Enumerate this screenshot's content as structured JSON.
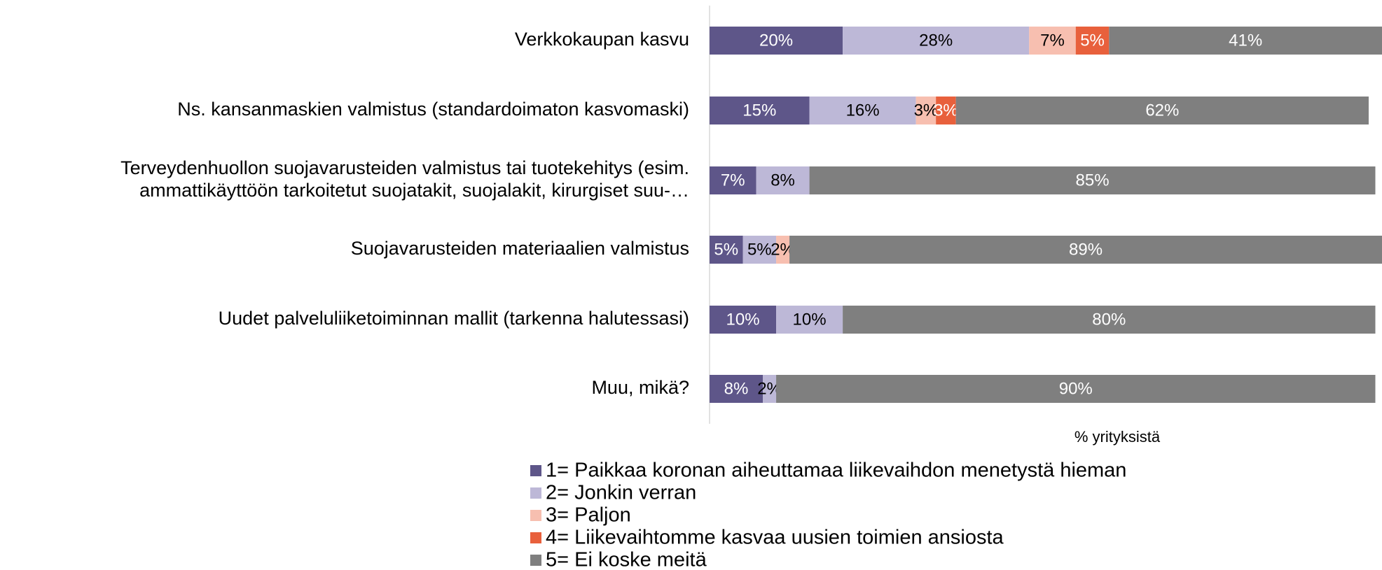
{
  "chart_data": {
    "type": "stacked-barh",
    "categories": [
      "Verkkokaupan kasvu",
      "Ns. kansanmaskien valmistus (standardoimaton kasvomaski)",
      "Terveydenhuollon suojavarusteiden valmistus tai tuotekehitys (esim.\nammattikäyttöön tarkoitetut suojatakit, suojalakit, kirurgiset suu-…",
      "Suojavarusteiden materiaalien valmistus",
      "Uudet palveluliiketoiminnan mallit (tarkenna halutessasi)",
      "Muu, mikä?"
    ],
    "series": [
      {
        "name": "1= Paikkaa koronan aiheuttamaa liikevaihdon menetystä hieman",
        "color": "#5e5689",
        "values": [
          20,
          15,
          7,
          5,
          10,
          8
        ],
        "value_labels": [
          "20%",
          "15%",
          "7%",
          "5%",
          "10%",
          "8%"
        ]
      },
      {
        "name": "2= Jonkin verran",
        "color": "#bdb8d7",
        "values": [
          28,
          16,
          8,
          5,
          10,
          2
        ],
        "value_labels": [
          "28%",
          "16%",
          "8%",
          "5%",
          "10%",
          "2%"
        ]
      },
      {
        "name": "3= Paljon",
        "color": "#f7bfb0",
        "values": [
          7,
          3,
          null,
          2,
          null,
          null
        ],
        "value_labels": [
          "7%",
          "3%",
          null,
          "2%",
          null,
          null
        ]
      },
      {
        "name": "4= Liikevaihtomme kasvaa uusien toimien ansiosta",
        "color": "#e8603c",
        "values": [
          5,
          3,
          null,
          null,
          null,
          null
        ],
        "value_labels": [
          "5%",
          "3%",
          null,
          null,
          null,
          null
        ]
      },
      {
        "name": "5= Ei koske meitä",
        "color": "#7f7f7f",
        "values": [
          41,
          62,
          85,
          89,
          80,
          90
        ],
        "value_labels": [
          "41%",
          "62%",
          "85%",
          "89%",
          "80%",
          "90%"
        ]
      }
    ],
    "xlabel": "% yrityksistä",
    "xlim": [
      0,
      101
    ],
    "legend": "bottom"
  }
}
